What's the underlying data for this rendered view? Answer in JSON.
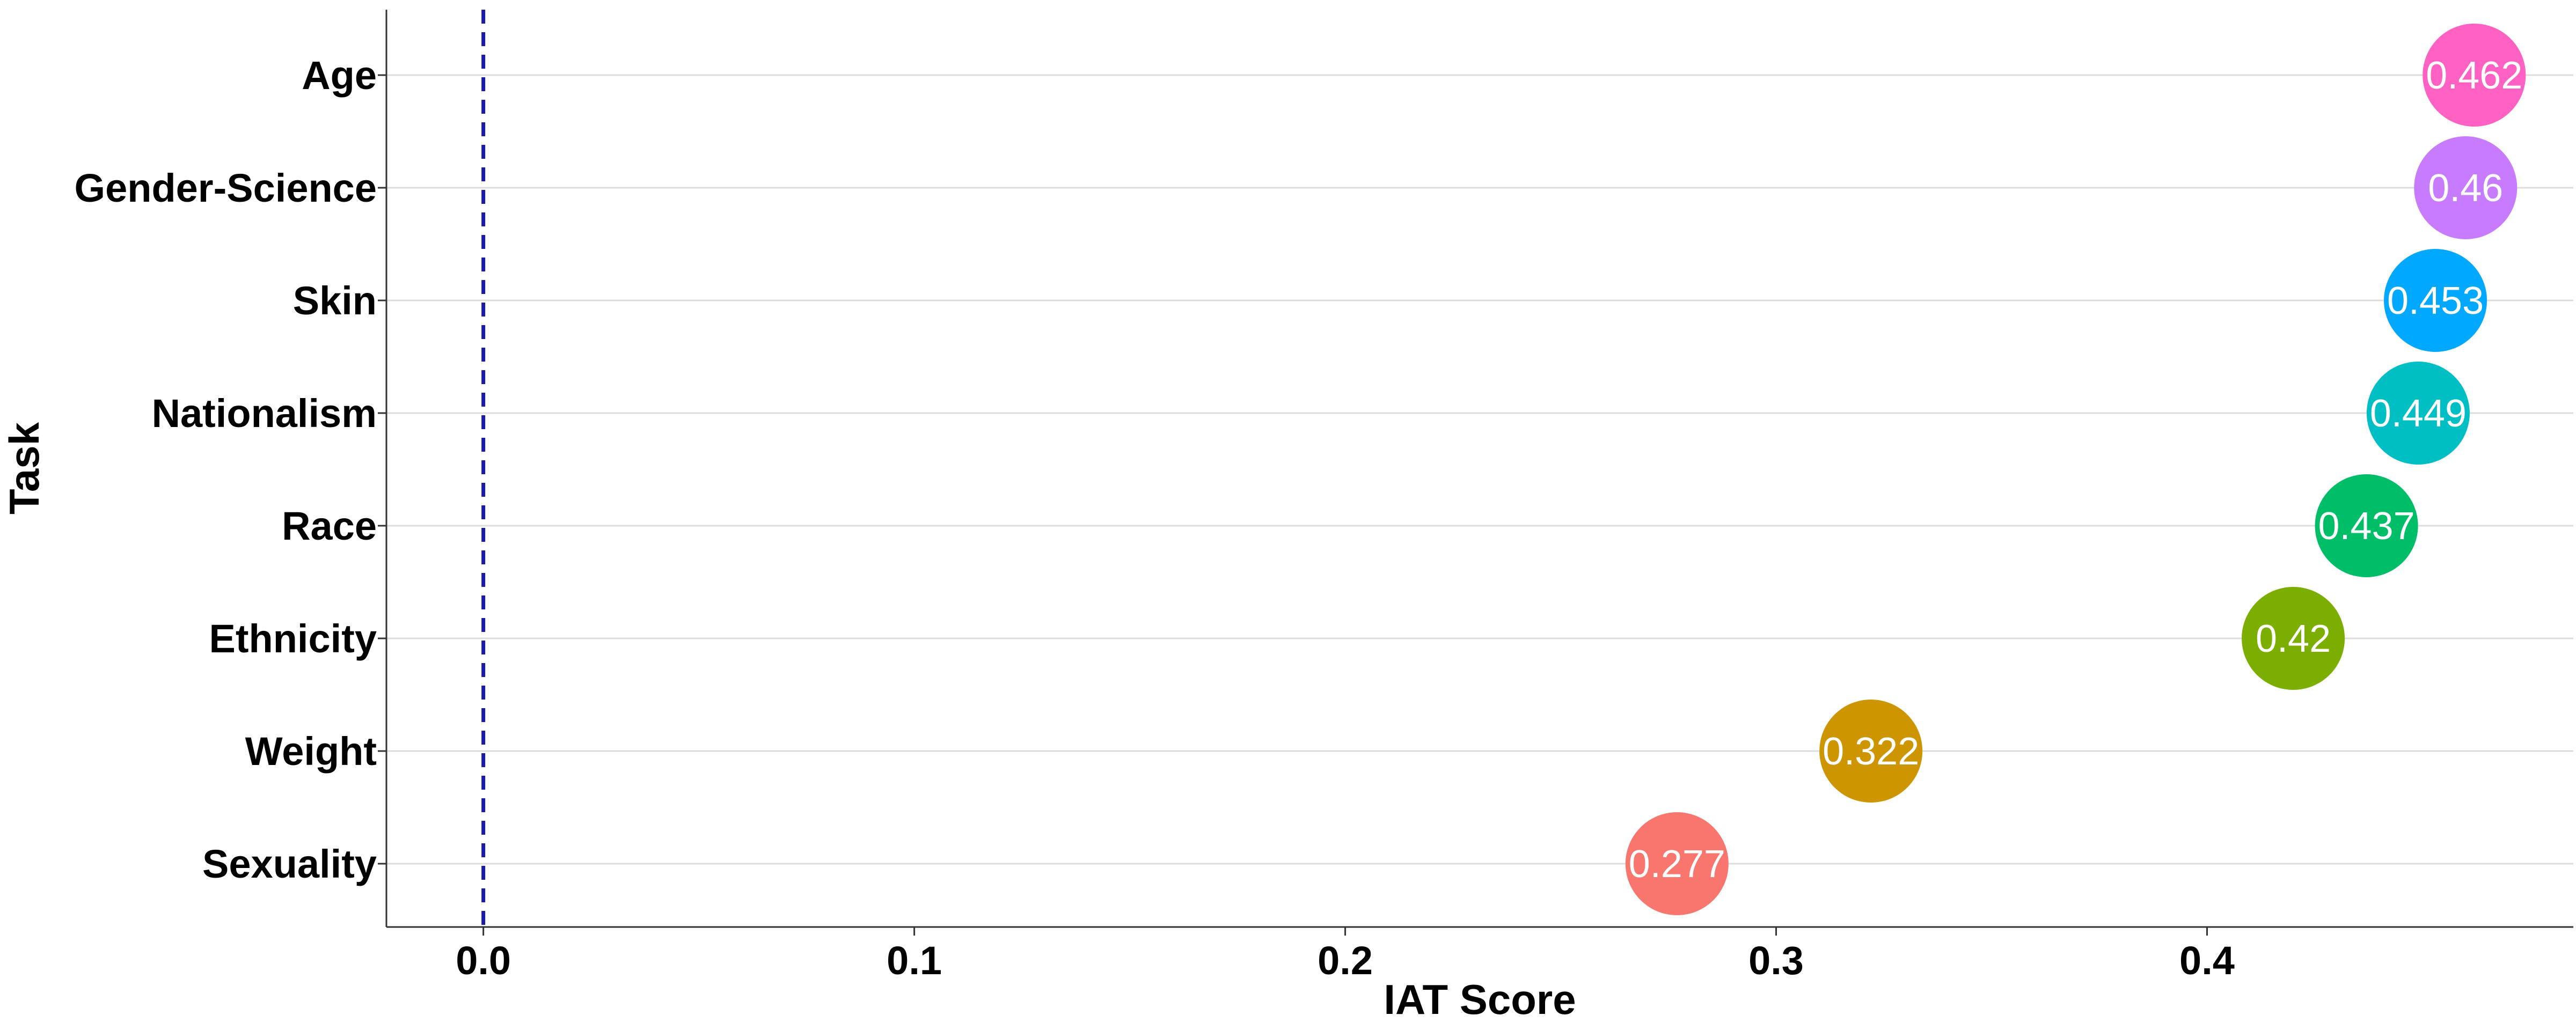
{
  "chart_data": {
    "type": "scatter",
    "title": "",
    "xlabel": "IAT Score",
    "ylabel": "Task",
    "xlim": [
      -0.0225,
      0.485
    ],
    "x_ticks": [
      "0.0",
      "0.1",
      "0.2",
      "0.3",
      "0.4"
    ],
    "x_tick_values": [
      0.0,
      0.1,
      0.2,
      0.3,
      0.4
    ],
    "reference_line": {
      "x": 0,
      "style": "dashed",
      "color": "#1a1aa6"
    },
    "grid": "horizontal",
    "legend": "none",
    "categories": [
      "Age",
      "Gender-Science",
      "Skin",
      "Nationalism",
      "Race",
      "Ethnicity",
      "Weight",
      "Sexuality"
    ],
    "values": [
      0.462,
      0.46,
      0.453,
      0.449,
      0.437,
      0.42,
      0.322,
      0.277
    ],
    "labels": [
      "0.462",
      "0.46",
      "0.453",
      "0.449",
      "0.437",
      "0.42",
      "0.322",
      "0.277"
    ],
    "colors": [
      "#FF61C3",
      "#C77CFF",
      "#00A9FF",
      "#00BFC4",
      "#00BE67",
      "#7CAE00",
      "#CD9600",
      "#F8766D"
    ]
  }
}
